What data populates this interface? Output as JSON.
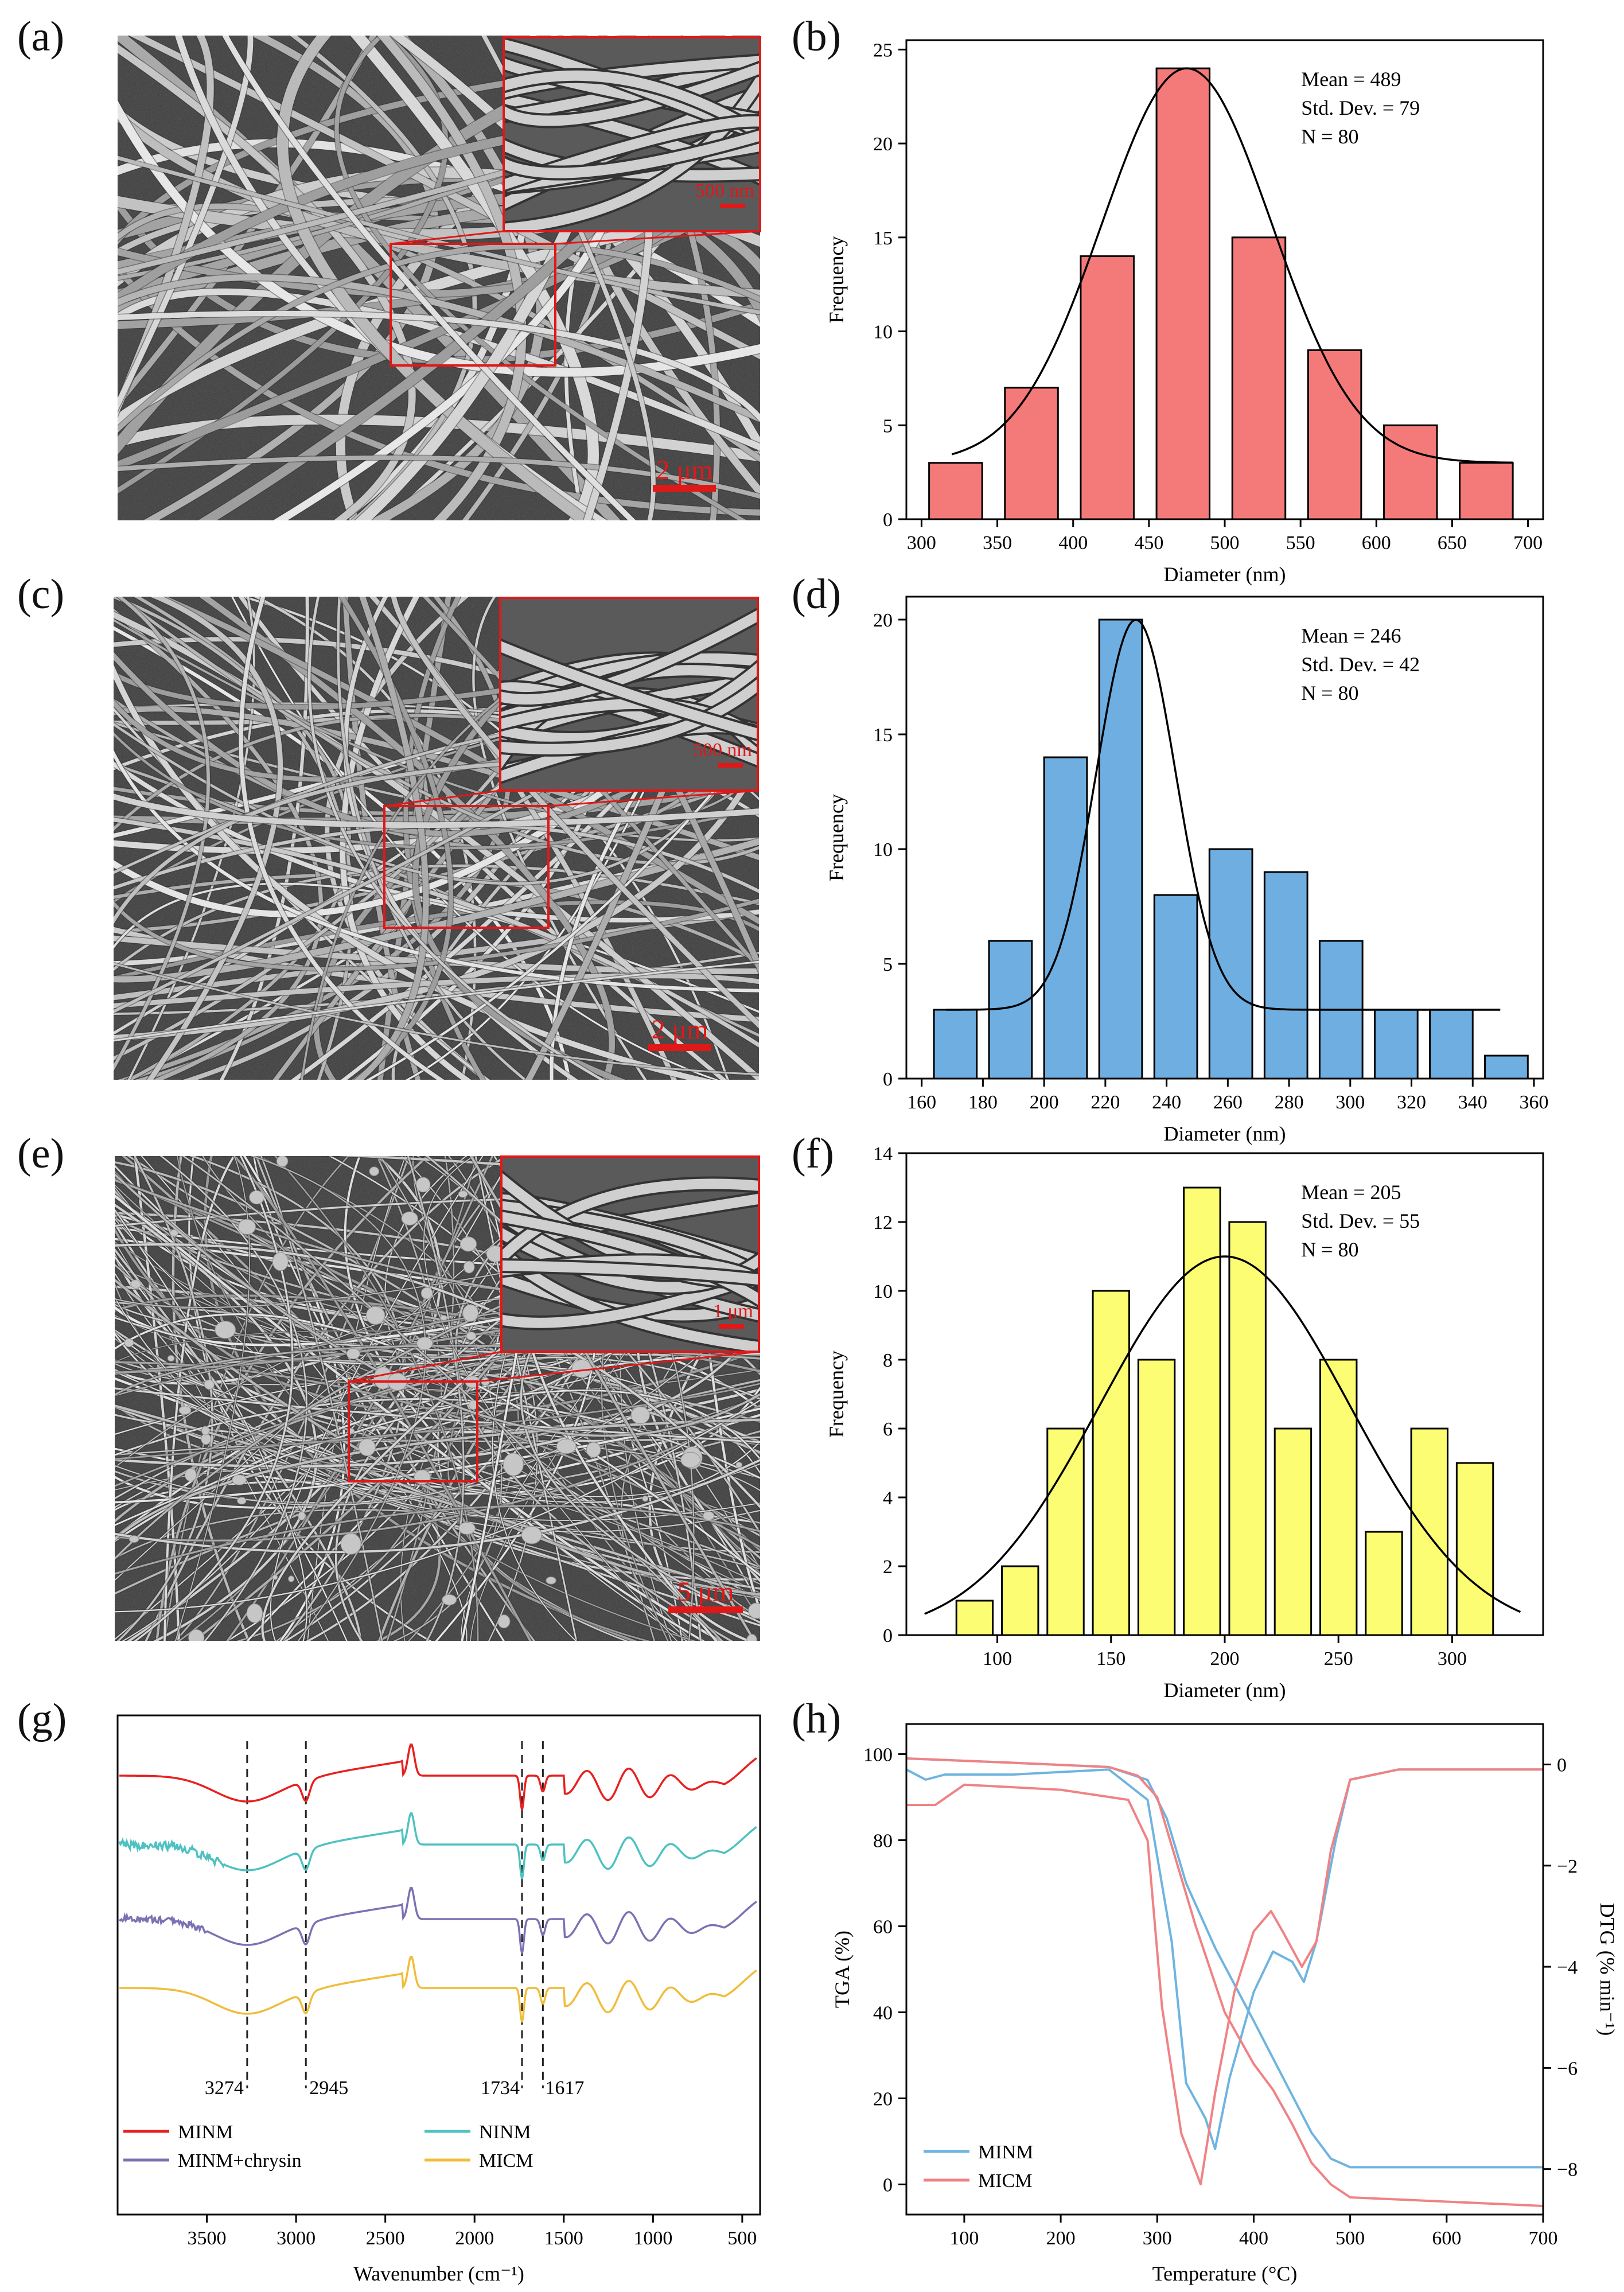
{
  "sem_panels": [
    {
      "label": "(a)",
      "scale_bar": "2 μm",
      "inset_scale": "500 nm"
    },
    {
      "label": "(c)",
      "scale_bar": "2 μm",
      "inset_scale": "500 nm"
    },
    {
      "label": "(e)",
      "scale_bar": "5 μm",
      "inset_scale": "1 μm"
    }
  ],
  "chart_data": [
    {
      "panel": "(b)",
      "type": "bar",
      "title": "",
      "xlabel": "Diameter (nm)",
      "ylabel": "Frequency",
      "xlim": [
        290,
        710
      ],
      "ylim": [
        0,
        25.5
      ],
      "xticks": [
        300,
        350,
        400,
        450,
        500,
        550,
        600,
        650,
        700
      ],
      "yticks": [
        0,
        5,
        10,
        15,
        20,
        25
      ],
      "bins": [
        [
          305,
          340
        ],
        [
          355,
          390
        ],
        [
          405,
          440
        ],
        [
          455,
          490
        ],
        [
          505,
          540
        ],
        [
          555,
          590
        ],
        [
          605,
          640
        ],
        [
          655,
          690
        ]
      ],
      "values": [
        3,
        7,
        14,
        24,
        15,
        9,
        5,
        3
      ],
      "bar_color": "#f47a79",
      "fit_curve": {
        "type": "gaussian",
        "center": 475,
        "sigma": 56,
        "baseline": 3,
        "peak": 24,
        "range": [
          320,
          690
        ]
      },
      "stats": [
        "Mean = 489",
        "Std. Dev. = 79",
        "N = 80"
      ]
    },
    {
      "panel": "(d)",
      "type": "bar",
      "title": "",
      "xlabel": "Diameter (nm)",
      "ylabel": "Frequency",
      "xlim": [
        155,
        363
      ],
      "ylim": [
        0,
        21
      ],
      "xticks": [
        160,
        180,
        200,
        220,
        240,
        260,
        280,
        300,
        320,
        340,
        360
      ],
      "yticks": [
        0,
        5,
        10,
        15,
        20
      ],
      "bins": [
        [
          164,
          178
        ],
        [
          182,
          196
        ],
        [
          200,
          214
        ],
        [
          218,
          232
        ],
        [
          236,
          250
        ],
        [
          254,
          268
        ],
        [
          272,
          286
        ],
        [
          290,
          304
        ],
        [
          308,
          322
        ],
        [
          326,
          340
        ],
        [
          344,
          358
        ]
      ],
      "values": [
        3,
        6,
        14,
        20,
        8,
        10,
        9,
        6,
        3,
        3,
        1
      ],
      "bar_color": "#6faee0",
      "fit_curve": {
        "type": "gaussian",
        "center": 230,
        "sigma": 13,
        "baseline": 3,
        "peak": 20,
        "range": [
          168,
          349
        ]
      },
      "stats": [
        "Mean = 246",
        "Std. Dev. = 42",
        "N = 80"
      ]
    },
    {
      "panel": "(f)",
      "type": "bar",
      "title": "",
      "xlabel": "Diameter (nm)",
      "ylabel": "Frequency",
      "xlim": [
        60,
        340
      ],
      "ylim": [
        0,
        14
      ],
      "xticks": [
        100,
        150,
        200,
        250,
        300
      ],
      "yticks": [
        0,
        2,
        4,
        6,
        8,
        10,
        12,
        14
      ],
      "bins": [
        [
          82,
          98
        ],
        [
          102,
          118
        ],
        [
          122,
          138
        ],
        [
          142,
          158
        ],
        [
          162,
          178
        ],
        [
          182,
          198
        ],
        [
          202,
          218
        ],
        [
          222,
          238
        ],
        [
          242,
          258
        ],
        [
          262,
          278
        ],
        [
          282,
          298
        ],
        [
          302,
          318
        ]
      ],
      "values": [
        1,
        2,
        6,
        10,
        8,
        13,
        12,
        6,
        8,
        3,
        6,
        5
      ],
      "bar_color": "#fdfd73",
      "fit_curve": {
        "type": "gaussian",
        "center": 200,
        "sigma": 55,
        "baseline": 0,
        "peak": 11,
        "range": [
          68,
          330
        ]
      },
      "stats": [
        "Mean = 205",
        "Std. Dev. = 55",
        "N = 80"
      ]
    },
    {
      "panel": "(g)",
      "type": "line",
      "title": "",
      "xlabel": "Wavenumber (cm⁻¹)",
      "ylabel": "",
      "xlim": [
        4000,
        400
      ],
      "x_reversed": true,
      "xticks": [
        3500,
        3000,
        2500,
        2000,
        1500,
        1000,
        500
      ],
      "marker_lines": [
        3274,
        2945,
        1734,
        1617
      ],
      "marker_labels": [
        "3274",
        "2945",
        "1734",
        "1617"
      ],
      "series": [
        {
          "name": "MINM",
          "color": "#e8201f",
          "offset": 0
        },
        {
          "name": "NINM",
          "color": "#4fc1c1",
          "offset": 1
        },
        {
          "name": "MINM+chrysin",
          "color": "#7a72b3",
          "offset": 2
        },
        {
          "name": "MICM",
          "color": "#f0bd3a",
          "offset": 3
        }
      ],
      "legend": "bottom"
    },
    {
      "panel": "(h)",
      "type": "line",
      "title": "",
      "xlabel": "Temperature (°C)",
      "ylabel": "TGA (%)",
      "y2label": "DTG (% min⁻¹)",
      "xlim": [
        40,
        700
      ],
      "ylim": [
        -7,
        107
      ],
      "y2lim": [
        -8.9,
        0.8
      ],
      "xticks": [
        100,
        200,
        300,
        400,
        500,
        600,
        700
      ],
      "yticks": [
        0,
        20,
        40,
        60,
        80,
        100
      ],
      "y2ticks": [
        0,
        -2,
        -4,
        -6,
        -8
      ],
      "series": [
        {
          "name": "MINM",
          "color": "#6fb4e0",
          "tga": [
            [
              40,
              99
            ],
            [
              150,
              98
            ],
            [
              250,
              97
            ],
            [
              290,
              94
            ],
            [
              310,
              85
            ],
            [
              330,
              70
            ],
            [
              360,
              55
            ],
            [
              400,
              38
            ],
            [
              430,
              25
            ],
            [
              460,
              12
            ],
            [
              480,
              6
            ],
            [
              500,
              4
            ],
            [
              600,
              4
            ],
            [
              700,
              4
            ]
          ],
          "dtg": [
            [
              40,
              -0.1
            ],
            [
              60,
              -0.3
            ],
            [
              80,
              -0.2
            ],
            [
              150,
              -0.2
            ],
            [
              250,
              -0.1
            ],
            [
              290,
              -0.7
            ],
            [
              315,
              -3.5
            ],
            [
              330,
              -6.3
            ],
            [
              350,
              -7
            ],
            [
              360,
              -7.6
            ],
            [
              375,
              -6.2
            ],
            [
              400,
              -4.5
            ],
            [
              420,
              -3.7
            ],
            [
              440,
              -3.9
            ],
            [
              452,
              -4.3
            ],
            [
              465,
              -3.5
            ],
            [
              485,
              -1.5
            ],
            [
              500,
              -0.3
            ],
            [
              550,
              -0.1
            ],
            [
              700,
              -0.1
            ]
          ]
        },
        {
          "name": "MICM",
          "color": "#f08284",
          "tga": [
            [
              40,
              99
            ],
            [
              150,
              98
            ],
            [
              250,
              97
            ],
            [
              280,
              95
            ],
            [
              300,
              90
            ],
            [
              320,
              75
            ],
            [
              340,
              60
            ],
            [
              370,
              40
            ],
            [
              400,
              28
            ],
            [
              420,
              22
            ],
            [
              440,
              14
            ],
            [
              460,
              5
            ],
            [
              480,
              0
            ],
            [
              500,
              -3
            ],
            [
              600,
              -4
            ],
            [
              700,
              -5
            ]
          ],
          "dtg": [
            [
              40,
              -0.8
            ],
            [
              70,
              -0.8
            ],
            [
              100,
              -0.4
            ],
            [
              200,
              -0.5
            ],
            [
              270,
              -0.7
            ],
            [
              290,
              -1.5
            ],
            [
              305,
              -4.8
            ],
            [
              325,
              -7.3
            ],
            [
              345,
              -8.3
            ],
            [
              360,
              -6.5
            ],
            [
              380,
              -4.5
            ],
            [
              400,
              -3.3
            ],
            [
              418,
              -2.9
            ],
            [
              430,
              -3.3
            ],
            [
              450,
              -4
            ],
            [
              465,
              -3.5
            ],
            [
              480,
              -1.7
            ],
            [
              500,
              -0.3
            ],
            [
              550,
              -0.1
            ],
            [
              700,
              -0.1
            ]
          ]
        }
      ],
      "legend": "bottom-left"
    }
  ]
}
